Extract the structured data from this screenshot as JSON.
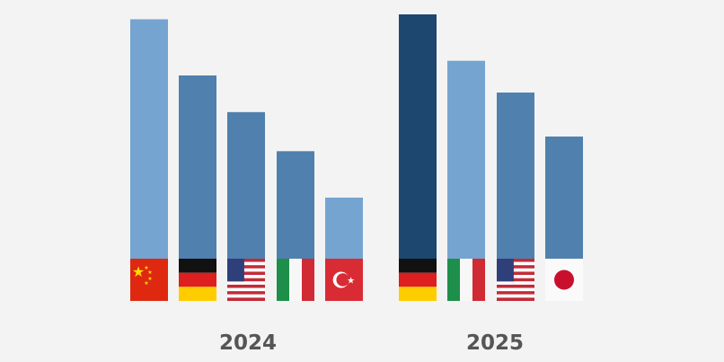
{
  "chart_data": {
    "type": "bar",
    "title": "",
    "xlabel": "",
    "ylabel": "",
    "ylim": [
      0,
      100
    ],
    "grid": false,
    "groups": [
      {
        "label": "2024",
        "bars": [
          {
            "country": "China",
            "flag": "china-flag",
            "value": 98,
            "color": "#75a4d0"
          },
          {
            "country": "Germany",
            "flag": "germany-flag",
            "value": 75,
            "color": "#5080ad"
          },
          {
            "country": "USA",
            "flag": "usa-flag",
            "value": 60,
            "color": "#5080ad"
          },
          {
            "country": "Italy",
            "flag": "italy-flag",
            "value": 44,
            "color": "#5080ad"
          },
          {
            "country": "Turkey",
            "flag": "turkey-flag",
            "value": 25,
            "color": "#75a4d0"
          }
        ]
      },
      {
        "label": "2025",
        "bars": [
          {
            "country": "Germany",
            "flag": "germany-flag",
            "value": 100,
            "color": "#1e4770"
          },
          {
            "country": "Italy",
            "flag": "italy-flag",
            "value": 81,
            "color": "#75a4d0"
          },
          {
            "country": "USA",
            "flag": "usa-flag",
            "value": 68,
            "color": "#5080ad"
          },
          {
            "country": "Japan",
            "flag": "japan-flag",
            "value": 50,
            "color": "#5080ad"
          }
        ]
      }
    ]
  }
}
